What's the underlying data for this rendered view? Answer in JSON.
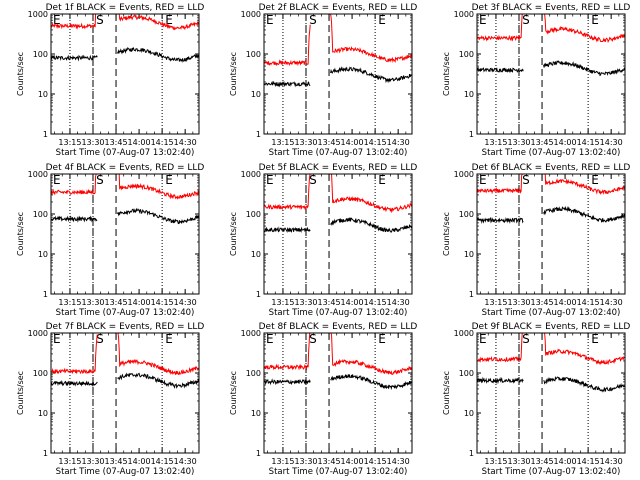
{
  "chart_data": {
    "type": "line",
    "x_ticks": [
      "13:15",
      "13:30",
      "13:45",
      "14:00",
      "14:15",
      "14:30"
    ],
    "xlim": [
      "13:02:40",
      "14:39:00"
    ],
    "ylim": [
      1,
      1000
    ],
    "y_scale": "log",
    "y_ticks": [
      "1",
      "10",
      "100",
      "1000"
    ],
    "ylabel": "Counts/sec",
    "xlabel": "Start Time (07-Aug-07 13:02:40)",
    "grid": false,
    "colors": {
      "events": "#000000",
      "lld": "#ff0000"
    },
    "markers": {
      "dotted": [
        "13:15",
        "13:30",
        "14:15"
      ],
      "dashed": [
        "13:30",
        "13:45"
      ]
    },
    "marker_labels": [
      {
        "text": "E",
        "at": "13:04"
      },
      {
        "text": "S",
        "at": "13:32"
      },
      {
        "text": "E",
        "at": "14:17"
      }
    ],
    "gap": [
      "13:33",
      "13:46"
    ],
    "panels": [
      {
        "title": "Det 1f BLACK = Events, RED = LLD",
        "events_before": 80,
        "events_after": 110,
        "lld_before": 500,
        "lld_after": 700
      },
      {
        "title": "Det 2f BLACK = Events, RED = LLD",
        "events_before": 18,
        "events_after": 35,
        "lld_before": 60,
        "lld_after": 110
      },
      {
        "title": "Det 3f BLACK = Events, RED = LLD",
        "events_before": 40,
        "events_after": 50,
        "lld_before": 250,
        "lld_after": 350
      },
      {
        "title": "Det 4f BLACK = Events, RED = LLD",
        "events_before": 75,
        "events_after": 100,
        "lld_before": 350,
        "lld_after": 420
      },
      {
        "title": "Det 5f BLACK = Events, RED = LLD",
        "events_before": 40,
        "events_after": 60,
        "lld_before": 150,
        "lld_after": 200
      },
      {
        "title": "Det 6f BLACK = Events, RED = LLD",
        "events_before": 70,
        "events_after": 110,
        "lld_before": 380,
        "lld_after": 550
      },
      {
        "title": "Det 7f BLACK = Events, RED = LLD",
        "events_before": 55,
        "events_after": 75,
        "lld_before": 110,
        "lld_after": 160
      },
      {
        "title": "Det 8f BLACK = Events, RED = LLD",
        "events_before": 60,
        "events_after": 70,
        "lld_before": 140,
        "lld_after": 160
      },
      {
        "title": "Det 9f BLACK = Events, RED = LLD",
        "events_before": 65,
        "events_after": 60,
        "lld_before": 220,
        "lld_after": 290
      }
    ]
  }
}
